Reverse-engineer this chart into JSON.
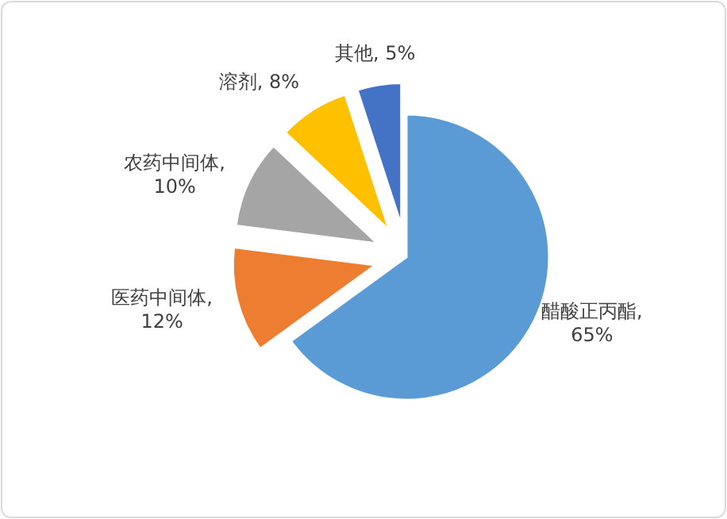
{
  "chart_data": {
    "type": "pie",
    "categories": [
      "醋酸正丙酯",
      "医药中间体",
      "农药中间体",
      "溶剂",
      "其他"
    ],
    "values": [
      65,
      12,
      10,
      8,
      5
    ],
    "colors": [
      "#5b9bd5",
      "#ed7d31",
      "#a5a5a5",
      "#ffc000",
      "#4472c4"
    ],
    "value_labels": [
      ", 65%",
      ", 12%",
      ", 10%",
      ", 8%",
      ", 5%"
    ]
  }
}
